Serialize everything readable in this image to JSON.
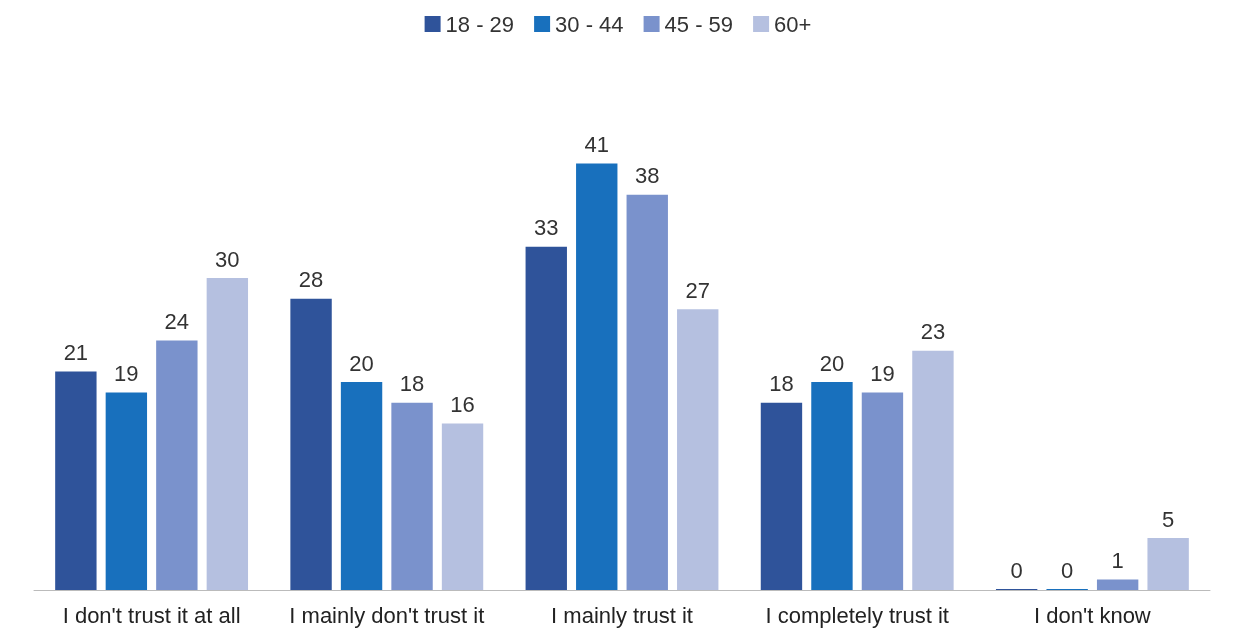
{
  "chart_data": {
    "type": "bar",
    "categories": [
      "I don't trust it at all",
      "I mainly don't trust it",
      "I mainly trust it",
      "I completely trust it",
      "I don't know"
    ],
    "series": [
      {
        "name": "18 - 29",
        "color": "#2f539a",
        "values": [
          21,
          28,
          33,
          18,
          0
        ]
      },
      {
        "name": "30 - 44",
        "color": "#1870bd",
        "values": [
          19,
          20,
          41,
          20,
          0
        ]
      },
      {
        "name": "45 - 59",
        "color": "#7a92cc",
        "values": [
          24,
          18,
          38,
          19,
          1
        ]
      },
      {
        "name": "60+",
        "color": "#b5c0e0",
        "values": [
          30,
          16,
          27,
          23,
          5
        ]
      }
    ],
    "data_labels": true,
    "legend": "top"
  }
}
